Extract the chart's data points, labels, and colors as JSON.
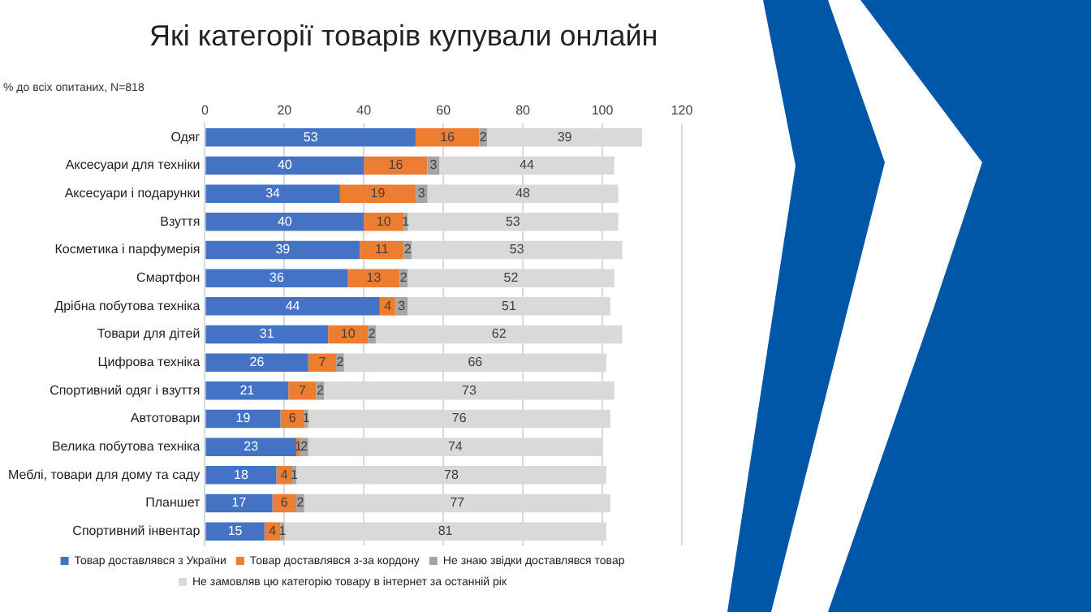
{
  "chart_data": {
    "type": "bar",
    "orientation": "horizontal",
    "stacked": true,
    "title": "Які категорії товарів купували онлайн",
    "subtitle": "% до всіх опитаних, N=818",
    "categories": [
      "Одяг",
      "Аксесуари для техніки",
      "Аксесуари і подарунки",
      "Взуття",
      "Косметика і парфумерія",
      "Смартфон",
      "Дрібна побутова техніка",
      "Товари для дітей",
      "Цифрова техніка",
      "Спортивний одяг і взуття",
      "Автотовари",
      "Велика побутова техніка",
      "Меблі, товари для дому та саду",
      "Планшет",
      "Спортивний інвентар"
    ],
    "series": [
      {
        "name": "Товар доставлявся з України",
        "color": "#4472c4",
        "values": [
          53,
          40,
          34,
          40,
          39,
          36,
          44,
          31,
          26,
          21,
          19,
          23,
          18,
          17,
          15
        ]
      },
      {
        "name": "Товар доставлявся з-за кордону",
        "color": "#ed7d31",
        "values": [
          16,
          16,
          19,
          10,
          11,
          13,
          4,
          10,
          7,
          7,
          6,
          1,
          4,
          6,
          4
        ]
      },
      {
        "name": "Не знаю звідки доставлявся товар",
        "color": "#a5a5a5",
        "values": [
          2,
          3,
          3,
          1,
          2,
          2,
          3,
          2,
          2,
          2,
          1,
          2,
          1,
          2,
          1
        ]
      },
      {
        "name": "Не замовляв цю категорію товару в інтернет за останній рік",
        "color": "#d9d9d9",
        "values": [
          39,
          44,
          48,
          53,
          53,
          52,
          51,
          62,
          66,
          73,
          76,
          74,
          78,
          77,
          81
        ]
      }
    ],
    "xlim": [
      0,
      120
    ],
    "xticks": [
      0,
      20,
      40,
      60,
      80,
      100,
      120
    ],
    "grid": "x",
    "legend": "bottom",
    "data_labels": true
  }
}
